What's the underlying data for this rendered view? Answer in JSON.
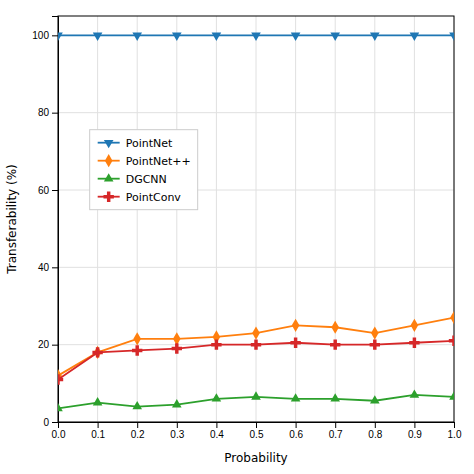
{
  "chart_data": {
    "type": "line",
    "x": [
      0.0,
      0.1,
      0.2,
      0.3,
      0.4,
      0.5,
      0.6,
      0.7,
      0.8,
      0.9,
      1.0
    ],
    "series": [
      {
        "name": "PointNet",
        "color": "#1f77b4",
        "marker": "triangle-down",
        "values": [
          100,
          100,
          100,
          100,
          100,
          100,
          100,
          100,
          100,
          100,
          100
        ]
      },
      {
        "name": "PointNet++",
        "color": "#ff7f0e",
        "marker": "diamond",
        "values": [
          12,
          18,
          21.5,
          21.5,
          22,
          23,
          25,
          24.5,
          23,
          25,
          27
        ]
      },
      {
        "name": "DGCNN",
        "color": "#2ca02c",
        "marker": "triangle-up",
        "values": [
          3.5,
          5.0,
          4.0,
          4.5,
          6.0,
          6.5,
          6.0,
          6.0,
          5.5,
          7.0,
          6.5
        ]
      },
      {
        "name": "PointConv",
        "color": "#d62728",
        "marker": "plus",
        "values": [
          11,
          18,
          18.5,
          19,
          20,
          20,
          20.5,
          20,
          20,
          20.5,
          21
        ]
      }
    ],
    "x_label": "Probability",
    "y_label": "Transferability (%)",
    "xlim": [
      0.0,
      1.0
    ],
    "ylim": [
      0,
      105
    ],
    "xticks": [
      {
        "value": 0.0,
        "label": "0.0"
      },
      0.1,
      0.2,
      0.3,
      0.4,
      0.5,
      0.6,
      0.7,
      0.8,
      0.9,
      {
        "value": 1.0,
        "label": "1.0"
      }
    ],
    "yticks": [
      0,
      20,
      40,
      60,
      80,
      100
    ],
    "grid": true,
    "legend": "upper left"
  }
}
